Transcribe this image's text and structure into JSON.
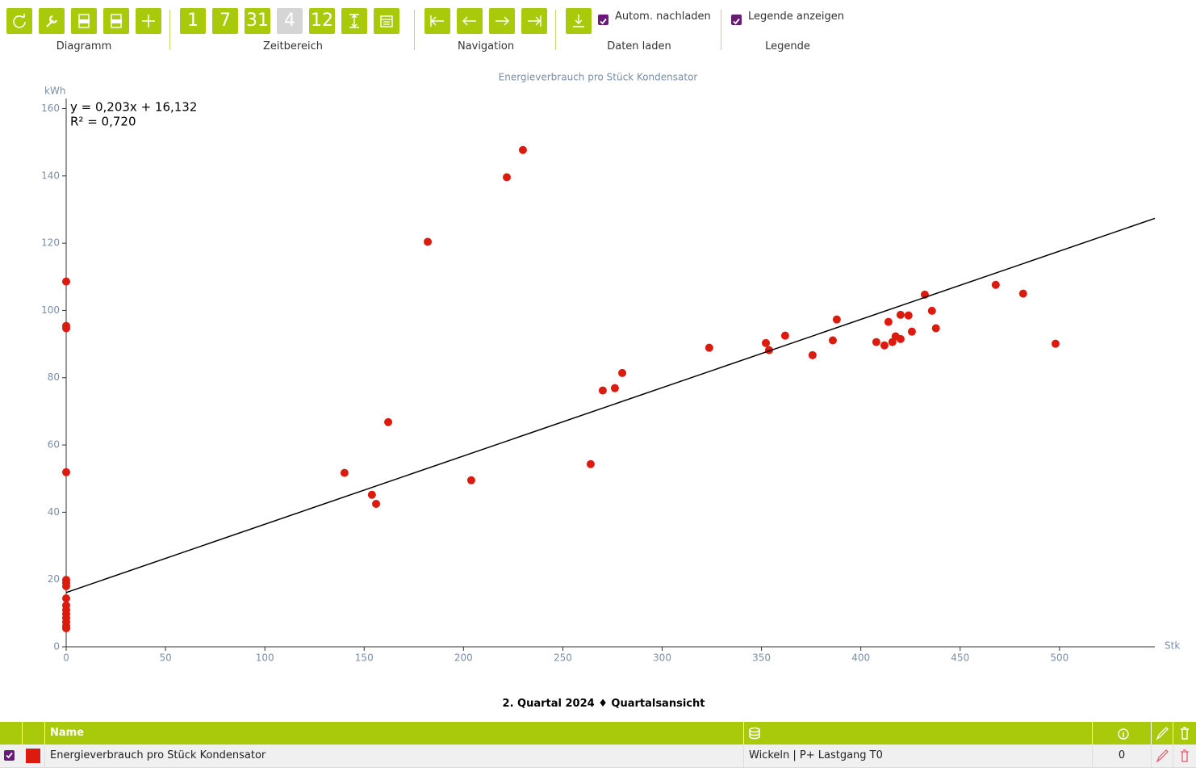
{
  "toolbar": {
    "groups": [
      {
        "label": "Diagramm"
      },
      {
        "label": "Zeitbereich",
        "buttons": [
          "1",
          "7",
          "31",
          "4",
          "12"
        ]
      },
      {
        "label": "Navigation"
      },
      {
        "label": "Daten laden",
        "checkbox": "Autom. nachladen"
      },
      {
        "label": "Legende",
        "checkbox": "Legende anzeigen"
      }
    ]
  },
  "chart_data": {
    "type": "scatter",
    "title": "Energieverbrauch pro Stück Kondensator",
    "y_label": "kWh",
    "x_label": "Stk",
    "x": [
      0,
      0,
      0,
      0,
      0,
      0,
      0,
      0,
      0,
      0,
      0,
      0,
      0,
      0,
      0,
      140.1,
      153.9,
      156,
      162.1,
      182,
      203.9,
      221.8,
      229.9,
      264,
      270.1,
      276.2,
      279.9,
      323.7,
      352.2,
      353.8,
      361.9,
      375.7,
      385.9,
      387.9,
      407.8,
      411.9,
      413.9,
      415.9,
      417.5,
      420,
      420,
      424,
      425.7,
      432.2,
      435.8,
      437.8,
      467.9,
      481.7,
      498
    ],
    "series": [
      {
        "name": "Energieverbrauch pro Stück Kondensator",
        "color": "#dd1a0e",
        "values": [
          108.6,
          95.4,
          94.7,
          51.9,
          19.9,
          19,
          18,
          14.4,
          12.3,
          11,
          9.8,
          8.6,
          7.4,
          6.2,
          5.5,
          51.7,
          45.2,
          42.5,
          66.8,
          120.4,
          49.5,
          139.6,
          147.7,
          54.3,
          76.2,
          76.9,
          81.4,
          88.9,
          90.3,
          88.2,
          92.5,
          86.7,
          91.1,
          97.3,
          90.6,
          89.6,
          96.6,
          90.6,
          92.3,
          98.7,
          91.5,
          98.5,
          93.7,
          104.7,
          99.9,
          94.7,
          107.6,
          105,
          90.1
        ]
      }
    ],
    "trendline": {
      "slope": 0.203,
      "intercept": 16.132,
      "equation_label": "y = 0,203x + 16,132",
      "r2_label": "R² = 0,720",
      "color": "#000000"
    },
    "xlim": [
      0,
      548
    ],
    "ylim": [
      0,
      163
    ],
    "xticks": [
      0,
      50,
      100,
      150,
      200,
      250,
      300,
      350,
      400,
      450,
      500
    ],
    "yticks": [
      0,
      20,
      40,
      60,
      80,
      100,
      120,
      140,
      160
    ]
  },
  "footer": "2. Quartal 2024 ♦ Quartalsansicht",
  "table": {
    "header": "Name",
    "rows": [
      {
        "source": "Wickeln | P+ Lastgang T0",
        "info": 0
      }
    ]
  }
}
